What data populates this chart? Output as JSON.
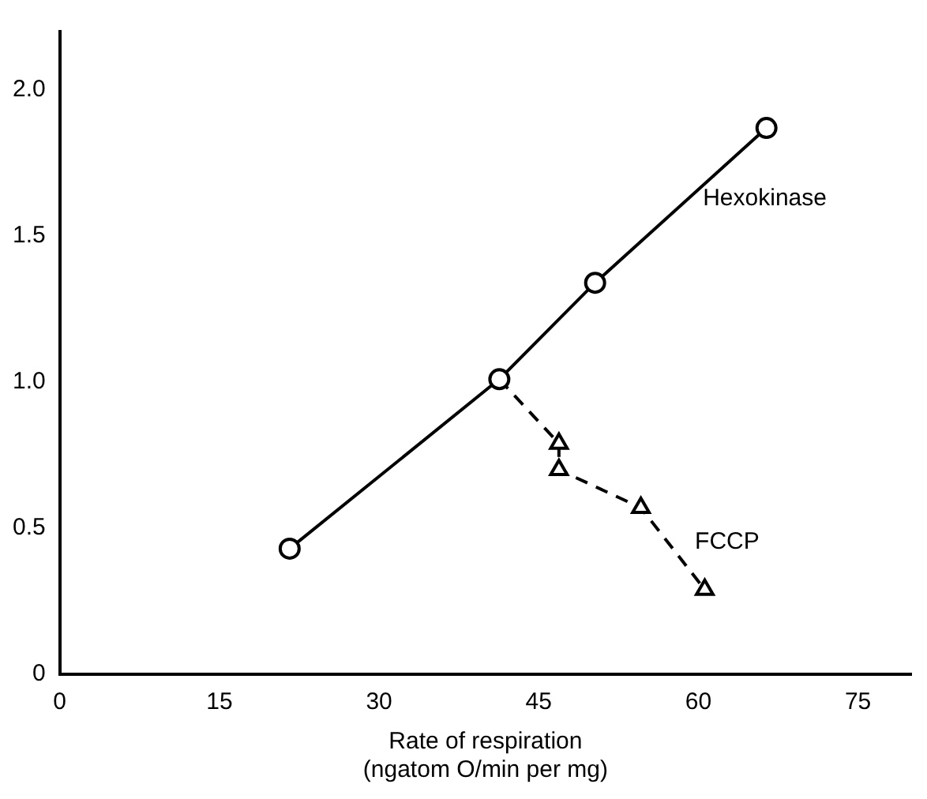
{
  "chart_data": {
    "type": "line",
    "xlabel": "Rate of respiration\n(ngatom O/min per mg)",
    "xlim": [
      0,
      80
    ],
    "xticks": [
      0,
      15,
      30,
      45,
      60,
      75
    ],
    "ylim": [
      0,
      2.2
    ],
    "yticks": [
      0,
      0.5,
      {
        "value": 1,
        "label": "1.0"
      },
      1.5,
      {
        "value": 2,
        "label": "2.0"
      }
    ],
    "grid": false,
    "legend": false,
    "series": [
      {
        "name": "Hexokinase",
        "color": "#000000",
        "marker": "circle",
        "line_style": "solid",
        "x": [
          21.6,
          41.3,
          50.3,
          66.4
        ],
        "values": [
          0.43,
          1.01,
          1.34,
          1.87
        ]
      },
      {
        "name": "FCCP",
        "color": "#000000",
        "marker": "triangle",
        "line_style": "dashed",
        "x": [
          41.3,
          46.9,
          46.9,
          54.6,
          60.6
        ],
        "values": [
          1.01,
          0.79,
          0.7,
          0.57,
          0.29
        ]
      }
    ]
  }
}
